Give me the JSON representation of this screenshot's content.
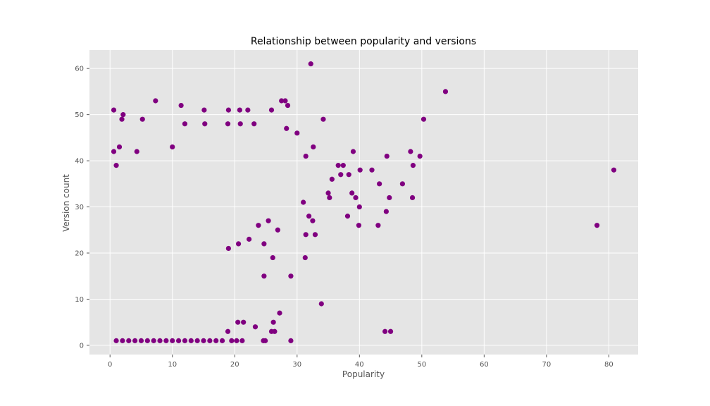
{
  "chart_data": {
    "type": "scatter",
    "title": "Relationship between popularity and versions",
    "xlabel": "Popularity",
    "ylabel": "Version count",
    "xlim": [
      -3.3,
      84.7
    ],
    "ylim": [
      -2,
      64
    ],
    "xticks": [
      0,
      10,
      20,
      30,
      40,
      50,
      60,
      70,
      80
    ],
    "yticks": [
      0,
      10,
      20,
      30,
      40,
      50,
      60
    ],
    "grid": true,
    "style": "ggplot",
    "colors": {
      "marker": "#800080",
      "plot_background": "#e5e5e5",
      "grid": "#ffffff"
    },
    "series": [
      {
        "points": [
          [
            32.2,
            61
          ],
          [
            53.8,
            55
          ],
          [
            7.3,
            53
          ],
          [
            27.5,
            53
          ],
          [
            28.1,
            53
          ],
          [
            11.4,
            52
          ],
          [
            28.5,
            52
          ],
          [
            0.6,
            51
          ],
          [
            15.1,
            51
          ],
          [
            19.0,
            51
          ],
          [
            20.8,
            51
          ],
          [
            22.1,
            51
          ],
          [
            25.9,
            51
          ],
          [
            2.1,
            50
          ],
          [
            1.9,
            49
          ],
          [
            5.2,
            49
          ],
          [
            34.2,
            49
          ],
          [
            50.3,
            49
          ],
          [
            12.0,
            48
          ],
          [
            15.2,
            48
          ],
          [
            18.9,
            48
          ],
          [
            20.9,
            48
          ],
          [
            23.1,
            48
          ],
          [
            28.3,
            47
          ],
          [
            30.0,
            46
          ],
          [
            32.6,
            43
          ],
          [
            1.5,
            43
          ],
          [
            10.0,
            43
          ],
          [
            0.6,
            42
          ],
          [
            4.3,
            42
          ],
          [
            39.0,
            42
          ],
          [
            44.4,
            41
          ],
          [
            48.2,
            42
          ],
          [
            49.7,
            41
          ],
          [
            48.6,
            39
          ],
          [
            1.0,
            39
          ],
          [
            31.4,
            41
          ],
          [
            36.6,
            39
          ],
          [
            37.4,
            39
          ],
          [
            40.1,
            38
          ],
          [
            42.0,
            38
          ],
          [
            35.6,
            36
          ],
          [
            46.9,
            35
          ],
          [
            43.2,
            35
          ],
          [
            37.0,
            37
          ],
          [
            38.3,
            37
          ],
          [
            44.8,
            32
          ],
          [
            48.5,
            32
          ],
          [
            35.0,
            33
          ],
          [
            35.2,
            32
          ],
          [
            38.8,
            33
          ],
          [
            39.4,
            32
          ],
          [
            40.0,
            30
          ],
          [
            44.3,
            29
          ],
          [
            38.1,
            28
          ],
          [
            31.0,
            31
          ],
          [
            31.9,
            28
          ],
          [
            32.5,
            27
          ],
          [
            39.9,
            26
          ],
          [
            43.0,
            26
          ],
          [
            31.4,
            24
          ],
          [
            32.9,
            24
          ],
          [
            31.3,
            19
          ],
          [
            29.0,
            15
          ],
          [
            33.9,
            9
          ],
          [
            27.2,
            7
          ],
          [
            26.2,
            5
          ],
          [
            44.1,
            3
          ],
          [
            45.0,
            3
          ],
          [
            23.3,
            4
          ],
          [
            25.9,
            3
          ],
          [
            26.4,
            3
          ],
          [
            24.6,
            1
          ],
          [
            24.9,
            1
          ],
          [
            29.0,
            1
          ],
          [
            78.1,
            26
          ],
          [
            80.8,
            38
          ],
          [
            19.0,
            21
          ],
          [
            20.6,
            22
          ],
          [
            22.3,
            23
          ],
          [
            24.7,
            22
          ],
          [
            23.8,
            26
          ],
          [
            26.9,
            25
          ],
          [
            25.4,
            27
          ],
          [
            26.1,
            19
          ],
          [
            24.7,
            15
          ],
          [
            20.5,
            5
          ],
          [
            21.4,
            5
          ],
          [
            19.5,
            1
          ],
          [
            20.3,
            1
          ],
          [
            21.2,
            1
          ],
          [
            18.9,
            3
          ],
          [
            1.0,
            1
          ],
          [
            2.0,
            1
          ],
          [
            3.0,
            1
          ],
          [
            4.0,
            1
          ],
          [
            5.0,
            1
          ],
          [
            6.0,
            1
          ],
          [
            7.0,
            1
          ],
          [
            8.0,
            1
          ],
          [
            9.0,
            1
          ],
          [
            10.0,
            1
          ],
          [
            11.0,
            1
          ],
          [
            12.0,
            1
          ],
          [
            13.0,
            1
          ],
          [
            14.0,
            1
          ],
          [
            15.0,
            1
          ],
          [
            16.0,
            1
          ],
          [
            17.0,
            1
          ],
          [
            18.0,
            1
          ]
        ]
      }
    ]
  }
}
